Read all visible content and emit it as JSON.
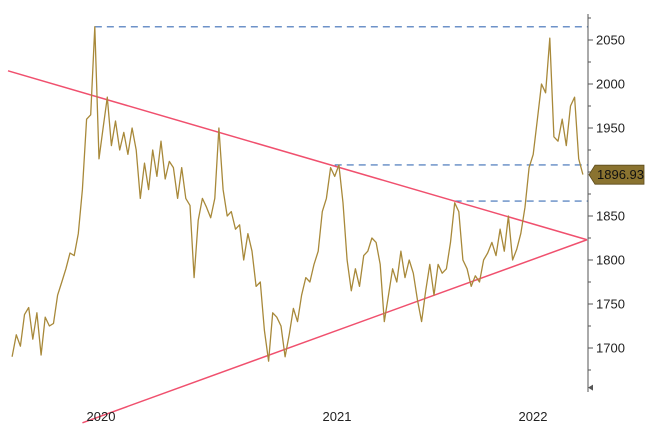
{
  "chart_data": {
    "type": "line",
    "title": "",
    "xlabel": "",
    "ylabel": "",
    "x_ticks": [
      "2020",
      "2021",
      "2022"
    ],
    "y_ticks": [
      "1700",
      "1750",
      "1800",
      "1850",
      "1900",
      "1950",
      "2000",
      "2050"
    ],
    "ylim": [
      1650,
      2075
    ],
    "xlim": [
      2019.4,
      2022.2
    ],
    "grid": false,
    "legend": "none",
    "y_axis_side": "right",
    "last_value_label": "1896.93",
    "colors": {
      "price_line": "#a8893a",
      "trendline": "#f0506e",
      "reference_line": "#3d6fb6",
      "callout_fill": "#8a7330",
      "axis": "#555555"
    },
    "series": [
      {
        "values": [
          [
            2019.42,
            1690
          ],
          [
            2019.44,
            1715
          ],
          [
            2019.46,
            1702
          ],
          [
            2019.48,
            1738
          ],
          [
            2019.5,
            1746
          ],
          [
            2019.52,
            1710
          ],
          [
            2019.54,
            1740
          ],
          [
            2019.56,
            1692
          ],
          [
            2019.58,
            1735
          ],
          [
            2019.6,
            1725
          ],
          [
            2019.62,
            1728
          ],
          [
            2019.64,
            1760
          ],
          [
            2019.66,
            1775
          ],
          [
            2019.68,
            1790
          ],
          [
            2019.7,
            1808
          ],
          [
            2019.72,
            1805
          ],
          [
            2019.74,
            1830
          ],
          [
            2019.76,
            1880
          ],
          [
            2019.78,
            1960
          ],
          [
            2019.8,
            1965
          ],
          [
            2019.82,
            2065
          ],
          [
            2019.84,
            1915
          ],
          [
            2019.86,
            1950
          ],
          [
            2019.88,
            1985
          ],
          [
            2019.9,
            1930
          ],
          [
            2019.92,
            1958
          ],
          [
            2019.94,
            1925
          ],
          [
            2019.96,
            1945
          ],
          [
            2019.98,
            1920
          ],
          [
            2020.0,
            1950
          ],
          [
            2020.02,
            1925
          ],
          [
            2020.04,
            1870
          ],
          [
            2020.06,
            1910
          ],
          [
            2020.08,
            1880
          ],
          [
            2020.1,
            1925
          ],
          [
            2020.12,
            1895
          ],
          [
            2020.14,
            1935
          ],
          [
            2020.16,
            1892
          ],
          [
            2020.18,
            1912
          ],
          [
            2020.2,
            1905
          ],
          [
            2020.22,
            1870
          ],
          [
            2020.24,
            1905
          ],
          [
            2020.26,
            1870
          ],
          [
            2020.28,
            1862
          ],
          [
            2020.3,
            1780
          ],
          [
            2020.32,
            1845
          ],
          [
            2020.34,
            1870
          ],
          [
            2020.36,
            1860
          ],
          [
            2020.38,
            1848
          ],
          [
            2020.4,
            1870
          ],
          [
            2020.42,
            1950
          ],
          [
            2020.44,
            1880
          ],
          [
            2020.46,
            1850
          ],
          [
            2020.48,
            1855
          ],
          [
            2020.5,
            1835
          ],
          [
            2020.52,
            1840
          ],
          [
            2020.54,
            1800
          ],
          [
            2020.56,
            1830
          ],
          [
            2020.58,
            1810
          ],
          [
            2020.6,
            1770
          ],
          [
            2020.62,
            1775
          ],
          [
            2020.64,
            1720
          ],
          [
            2020.66,
            1685
          ],
          [
            2020.68,
            1740
          ],
          [
            2020.7,
            1735
          ],
          [
            2020.72,
            1725
          ],
          [
            2020.74,
            1690
          ],
          [
            2020.76,
            1715
          ],
          [
            2020.78,
            1745
          ],
          [
            2020.8,
            1730
          ],
          [
            2020.82,
            1760
          ],
          [
            2020.84,
            1780
          ],
          [
            2020.86,
            1775
          ],
          [
            2020.88,
            1795
          ],
          [
            2020.9,
            1810
          ],
          [
            2020.92,
            1855
          ],
          [
            2020.94,
            1870
          ],
          [
            2020.96,
            1905
          ],
          [
            2020.98,
            1895
          ],
          [
            2021.0,
            1908
          ],
          [
            2021.02,
            1865
          ],
          [
            2021.04,
            1800
          ],
          [
            2021.06,
            1765
          ],
          [
            2021.08,
            1790
          ],
          [
            2021.1,
            1770
          ],
          [
            2021.12,
            1805
          ],
          [
            2021.14,
            1810
          ],
          [
            2021.16,
            1825
          ],
          [
            2021.18,
            1820
          ],
          [
            2021.2,
            1795
          ],
          [
            2021.22,
            1730
          ],
          [
            2021.24,
            1760
          ],
          [
            2021.26,
            1790
          ],
          [
            2021.28,
            1775
          ],
          [
            2021.3,
            1810
          ],
          [
            2021.32,
            1780
          ],
          [
            2021.34,
            1800
          ],
          [
            2021.36,
            1785
          ],
          [
            2021.38,
            1755
          ],
          [
            2021.4,
            1730
          ],
          [
            2021.42,
            1765
          ],
          [
            2021.44,
            1795
          ],
          [
            2021.46,
            1760
          ],
          [
            2021.48,
            1795
          ],
          [
            2021.5,
            1785
          ],
          [
            2021.52,
            1790
          ],
          [
            2021.54,
            1820
          ],
          [
            2021.56,
            1865
          ],
          [
            2021.58,
            1855
          ],
          [
            2021.6,
            1800
          ],
          [
            2021.62,
            1790
          ],
          [
            2021.64,
            1770
          ],
          [
            2021.66,
            1782
          ],
          [
            2021.68,
            1775
          ],
          [
            2021.7,
            1800
          ],
          [
            2021.72,
            1808
          ],
          [
            2021.74,
            1820
          ],
          [
            2021.76,
            1805
          ],
          [
            2021.78,
            1835
          ],
          [
            2021.8,
            1810
          ],
          [
            2021.82,
            1850
          ],
          [
            2021.84,
            1800
          ],
          [
            2021.86,
            1812
          ],
          [
            2021.88,
            1830
          ],
          [
            2021.9,
            1860
          ],
          [
            2021.92,
            1905
          ],
          [
            2021.94,
            1920
          ],
          [
            2021.96,
            1960
          ],
          [
            2021.98,
            2000
          ],
          [
            2022.0,
            1990
          ],
          [
            2022.02,
            2052
          ],
          [
            2022.04,
            1940
          ],
          [
            2022.06,
            1935
          ],
          [
            2022.08,
            1960
          ],
          [
            2022.1,
            1930
          ],
          [
            2022.12,
            1975
          ],
          [
            2022.14,
            1985
          ],
          [
            2022.16,
            1915
          ],
          [
            2022.18,
            1897
          ]
        ]
      }
    ],
    "trendlines": [
      {
        "from": [
          2019.4,
          2015
        ],
        "to": [
          2022.2,
          1823
        ]
      },
      {
        "from": [
          2019.76,
          1615
        ],
        "to": [
          2022.2,
          1823
        ]
      }
    ],
    "reference_lines": [
      {
        "y": 2065,
        "x_start": 2019.82
      },
      {
        "y": 1908,
        "x_start": 2020.98
      },
      {
        "y": 1867,
        "x_start": 2021.56
      }
    ]
  }
}
